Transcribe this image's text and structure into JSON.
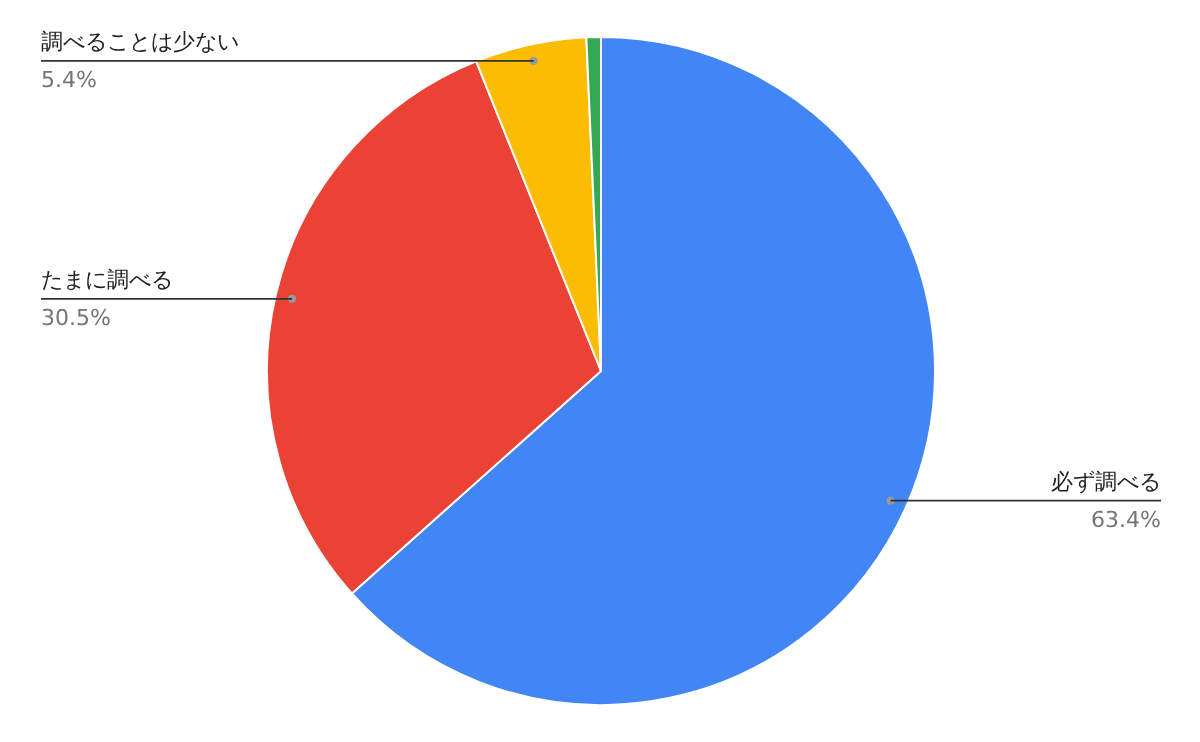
{
  "chart_data": {
    "type": "pie",
    "categories": [
      "必ず調べる",
      "たまに調べる",
      "調べることは少ない",
      null
    ],
    "values": [
      63.4,
      30.5,
      5.4,
      0.7
    ],
    "colors": [
      "#4285f4",
      "#ea4335",
      "#fbbc04",
      "#34a853"
    ],
    "value_labels": [
      "63.4%",
      "30.5%",
      "5.4%",
      null
    ]
  }
}
